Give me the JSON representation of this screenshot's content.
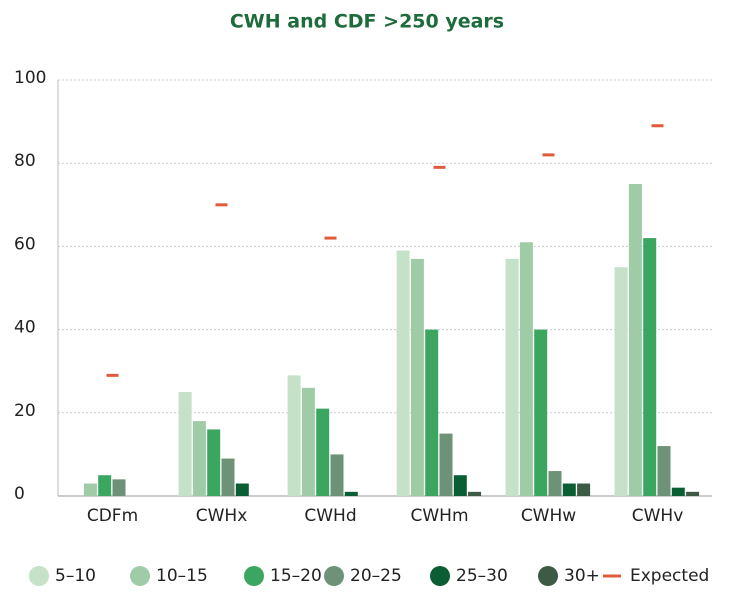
{
  "chart_data": {
    "type": "bar",
    "title": "CWH and CDF >250 years",
    "categories": [
      "CDFm",
      "CWHx",
      "CWHd",
      "CWHm",
      "CWHw",
      "CWHv"
    ],
    "series": [
      {
        "name": "5–10",
        "color": "#c5e1c8",
        "values": [
          0,
          25,
          29,
          59,
          57,
          55
        ]
      },
      {
        "name": "10–15",
        "color": "#9fcca6",
        "values": [
          3,
          18,
          26,
          57,
          61,
          75
        ]
      },
      {
        "name": "15–20",
        "color": "#3aa660",
        "values": [
          5,
          16,
          21,
          40,
          40,
          62
        ]
      },
      {
        "name": "20–25",
        "color": "#6e9277",
        "values": [
          4,
          9,
          10,
          15,
          6,
          12
        ]
      },
      {
        "name": "25–30",
        "color": "#0b5e34",
        "values": [
          0,
          3,
          1,
          5,
          3,
          2
        ]
      },
      {
        "name": "30+",
        "color": "#3d5a45",
        "values": [
          0,
          0,
          0,
          1,
          3,
          1
        ]
      }
    ],
    "expected": {
      "name": "Expected",
      "color": "#e05a3c",
      "values": [
        29,
        70,
        62,
        79,
        82,
        89
      ]
    },
    "ylim": [
      0,
      100
    ],
    "yticks": [
      0,
      20,
      40,
      60,
      80,
      100
    ],
    "grid": true
  }
}
